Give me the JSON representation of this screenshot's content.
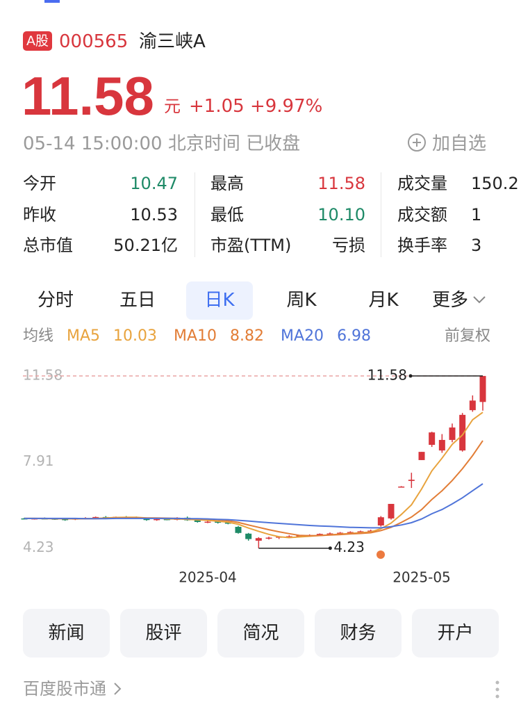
{
  "header": {
    "badge": "A股",
    "code": "000565",
    "name": "渝三峡A"
  },
  "quote": {
    "price": "11.58",
    "unit": "元",
    "change": "+1.05",
    "change_pct": "+9.97%"
  },
  "status": "05-14 15:00:00 北京时间 已收盘",
  "watch_button": "加自选",
  "stats": [
    {
      "label": "今开",
      "value": "10.47",
      "color": "#1e8a67"
    },
    {
      "label": "最高",
      "value": "11.58",
      "color": "#d8363d"
    },
    {
      "label": "成交量",
      "value": "150.2"
    },
    {
      "label": "昨收",
      "value": "10.53"
    },
    {
      "label": "最低",
      "value": "10.10",
      "color": "#1e8a67"
    },
    {
      "label": "成交额",
      "value": "1"
    },
    {
      "label": "总市值",
      "value": "50.21亿"
    },
    {
      "label": "市盈(TTM)",
      "value": "亏损"
    },
    {
      "label": "换手率",
      "value": "3"
    }
  ],
  "tabs": [
    {
      "label": "分时"
    },
    {
      "label": "五日"
    },
    {
      "label": "日K",
      "selected": true
    },
    {
      "label": "周K"
    },
    {
      "label": "月K"
    },
    {
      "label": "更多"
    }
  ],
  "ma_label": "均线",
  "adjust": "前复权",
  "chart_data": {
    "type": "candlestick",
    "up_color": "#d8363d",
    "down_color": "#1e8a67",
    "categories": [
      null,
      null,
      null,
      null,
      null,
      null,
      null,
      null,
      null,
      null,
      null,
      null,
      null,
      null,
      null,
      null,
      null,
      null,
      "2025-04",
      null,
      null,
      null,
      null,
      null,
      null,
      null,
      null,
      null,
      null,
      null,
      null,
      null,
      null,
      null,
      null,
      null,
      null,
      null,
      null,
      "2025-05",
      null,
      null,
      null,
      null,
      null,
      null
    ],
    "ohlc": {
      "open": [
        5.5,
        5.48,
        5.5,
        5.49,
        5.47,
        5.45,
        5.5,
        5.52,
        5.56,
        5.54,
        5.57,
        5.55,
        5.52,
        5.43,
        5.47,
        5.44,
        5.53,
        5.42,
        5.35,
        5.36,
        5.32,
        5.14,
        4.85,
        4.55,
        4.66,
        4.68,
        4.72,
        4.74,
        4.77,
        4.79,
        4.84,
        4.86,
        4.89,
        4.92,
        4.95,
        5.2,
        5.5,
        6.86,
        7.1,
        7.99,
        8.64,
        8.4,
        8.85,
        8.4,
        10.12,
        10.47
      ],
      "high": [
        5.53,
        5.52,
        5.54,
        5.52,
        5.5,
        5.52,
        5.55,
        5.58,
        5.6,
        5.58,
        5.6,
        5.58,
        5.54,
        5.5,
        5.52,
        5.55,
        5.58,
        5.45,
        5.4,
        5.4,
        5.36,
        5.18,
        4.88,
        4.7,
        4.72,
        4.75,
        4.78,
        4.8,
        4.82,
        4.86,
        4.9,
        4.92,
        4.95,
        4.98,
        5.02,
        5.6,
        6.12,
        6.88,
        7.45,
        8.34,
        9.2,
        9.1,
        9.55,
        10.0,
        10.75,
        11.58
      ],
      "low": [
        5.46,
        5.45,
        5.47,
        5.44,
        5.4,
        5.43,
        5.47,
        5.5,
        5.52,
        5.51,
        5.53,
        5.5,
        5.4,
        5.4,
        5.42,
        5.42,
        5.4,
        5.32,
        5.3,
        5.28,
        5.25,
        4.85,
        4.55,
        4.23,
        4.6,
        4.62,
        4.66,
        4.7,
        4.72,
        4.75,
        4.8,
        4.82,
        4.85,
        4.88,
        4.9,
        5.15,
        5.45,
        6.84,
        6.8,
        7.99,
        8.55,
        8.3,
        8.75,
        8.35,
        10.05,
        10.1
      ],
      "close": [
        5.48,
        5.5,
        5.49,
        5.47,
        5.45,
        5.5,
        5.52,
        5.56,
        5.54,
        5.57,
        5.55,
        5.52,
        5.43,
        5.47,
        5.44,
        5.53,
        5.42,
        5.35,
        5.36,
        5.32,
        5.3,
        4.88,
        4.62,
        4.66,
        4.68,
        4.72,
        4.74,
        4.77,
        4.79,
        4.84,
        4.86,
        4.89,
        4.92,
        4.95,
        4.98,
        5.55,
        6.12,
        6.86,
        7.15,
        8.34,
        9.17,
        8.85,
        9.38,
        9.92,
        10.53,
        11.58
      ]
    },
    "ma": [
      {
        "name": "MA5",
        "color": "#e8a33d",
        "values": [
          5.5,
          5.5,
          5.49,
          5.49,
          5.49,
          5.48,
          5.49,
          5.5,
          5.52,
          5.54,
          5.55,
          5.55,
          5.52,
          5.51,
          5.48,
          5.48,
          5.46,
          5.44,
          5.42,
          5.38,
          5.34,
          5.25,
          5.09,
          4.95,
          4.82,
          4.72,
          4.68,
          4.71,
          4.74,
          4.77,
          4.8,
          4.83,
          4.86,
          4.89,
          4.92,
          5.06,
          5.3,
          5.67,
          6.08,
          6.76,
          7.53,
          8.07,
          8.66,
          9.06,
          9.71,
          10.03
        ]
      },
      {
        "name": "MA10",
        "color": "#e27d36",
        "values": [
          5.5,
          5.5,
          5.5,
          5.49,
          5.49,
          5.49,
          5.49,
          5.49,
          5.5,
          5.51,
          5.52,
          5.52,
          5.52,
          5.52,
          5.51,
          5.5,
          5.49,
          5.48,
          5.47,
          5.44,
          5.4,
          5.33,
          5.22,
          5.12,
          5.02,
          4.93,
          4.85,
          4.78,
          4.76,
          4.77,
          4.79,
          4.81,
          4.84,
          4.86,
          4.89,
          4.98,
          5.12,
          5.33,
          5.56,
          5.88,
          6.31,
          6.68,
          7.12,
          7.62,
          8.18,
          8.82
        ]
      },
      {
        "name": "MA20",
        "color": "#4f74d9",
        "values": [
          5.5,
          5.5,
          5.5,
          5.5,
          5.5,
          5.5,
          5.49,
          5.49,
          5.49,
          5.5,
          5.5,
          5.5,
          5.5,
          5.5,
          5.5,
          5.5,
          5.49,
          5.49,
          5.48,
          5.46,
          5.45,
          5.42,
          5.39,
          5.35,
          5.32,
          5.29,
          5.26,
          5.23,
          5.2,
          5.18,
          5.16,
          5.14,
          5.12,
          5.11,
          5.1,
          5.1,
          5.15,
          5.22,
          5.32,
          5.48,
          5.7,
          5.88,
          6.12,
          6.38,
          6.68,
          6.98
        ]
      }
    ],
    "ylim": [
      3.45,
      12.2
    ],
    "yticks": [
      11.58,
      7.91,
      4.23
    ],
    "max": 11.58,
    "min": 4.23
  },
  "buttons": [
    "新闻",
    "股评",
    "简况",
    "财务",
    "开户"
  ],
  "footer": "百度股市通"
}
